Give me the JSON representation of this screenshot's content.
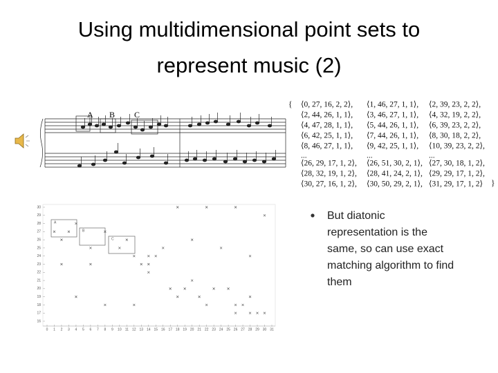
{
  "title": {
    "lines": [
      "Using multidimensional point sets to",
      "represent music (2)"
    ]
  },
  "score": {
    "labels": [
      "A",
      "B",
      "C"
    ]
  },
  "point_set": {
    "open": "{",
    "close": "}",
    "columns": [
      [
        "⟨0, 27, 16, 2, 2⟩,",
        "⟨2, 44, 26, 1, 1⟩,",
        "⟨4, 47, 28, 1, 1⟩,",
        "⟨6, 42, 25, 1, 1⟩,",
        "⟨8, 46, 27, 1, 1⟩,",
        "...",
        "⟨26, 29, 17, 1, 2⟩,",
        "⟨28, 32, 19, 1, 2⟩,",
        "⟨30, 27, 16, 1, 2⟩,"
      ],
      [
        "⟨1, 46, 27, 1, 1⟩,",
        "⟨3, 46, 27, 1, 1⟩,",
        "⟨5, 44, 26, 1, 1⟩,",
        "⟨7, 44, 26, 1, 1⟩,",
        "⟨9, 42, 25, 1, 1⟩,",
        "...",
        "⟨26, 51, 30, 2, 1⟩,",
        "⟨28, 41, 24, 2, 1⟩,",
        "⟨30, 50, 29, 2, 1⟩,"
      ],
      [
        "⟨2, 39, 23, 2, 2⟩,",
        "⟨4, 32, 19, 2, 2⟩,",
        "⟨6, 39, 23, 2, 2⟩,",
        "⟨8, 30, 18, 2, 2⟩,",
        "⟨10, 39, 23, 2, 2⟩,",
        "...",
        "⟨27, 30, 18, 1, 2⟩,",
        "⟨29, 29, 17, 1, 2⟩,",
        "⟨31, 29, 17, 1, 2⟩"
      ]
    ]
  },
  "plot": {
    "xlim": [
      0,
      31
    ],
    "ylim": [
      16,
      30
    ],
    "xticks": [
      0,
      1,
      2,
      3,
      4,
      5,
      6,
      7,
      8,
      9,
      10,
      11,
      12,
      13,
      14,
      15,
      16,
      17,
      18,
      19,
      20,
      21,
      22,
      23,
      24,
      25,
      26,
      27,
      28,
      29,
      30,
      31
    ],
    "yticks": [
      16,
      17,
      18,
      19,
      20,
      21,
      22,
      23,
      24,
      25,
      26,
      27,
      28,
      29,
      30
    ],
    "box_labels": [
      "A",
      "B",
      "C"
    ],
    "points": [
      [
        18,
        30
      ],
      [
        22,
        30
      ],
      [
        26,
        30
      ],
      [
        30,
        29
      ],
      [
        1,
        27
      ],
      [
        3,
        27
      ],
      [
        2,
        26
      ],
      [
        4,
        28
      ],
      [
        6,
        25
      ],
      [
        8,
        27
      ],
      [
        10,
        25
      ],
      [
        11,
        26
      ],
      [
        12,
        24
      ],
      [
        14,
        24
      ],
      [
        13,
        23
      ],
      [
        16,
        25
      ],
      [
        20,
        26
      ],
      [
        24,
        25
      ],
      [
        28,
        24
      ],
      [
        2,
        23
      ],
      [
        6,
        23
      ],
      [
        14,
        23
      ],
      [
        14,
        22
      ],
      [
        15,
        24
      ],
      [
        17,
        20
      ],
      [
        19,
        20
      ],
      [
        20,
        21
      ],
      [
        21,
        19
      ],
      [
        22,
        18
      ],
      [
        23,
        20
      ],
      [
        25,
        20
      ],
      [
        26,
        18
      ],
      [
        27,
        18
      ],
      [
        28,
        19
      ],
      [
        18,
        19
      ],
      [
        4,
        19
      ],
      [
        8,
        18
      ],
      [
        12,
        18
      ],
      [
        26,
        17
      ],
      [
        29,
        17
      ],
      [
        30,
        17
      ],
      [
        28,
        17
      ]
    ]
  },
  "bullet": {
    "lines": [
      "But diatonic",
      "representation is the",
      "same, so can use exact",
      "matching algorithm to find",
      "them"
    ]
  }
}
